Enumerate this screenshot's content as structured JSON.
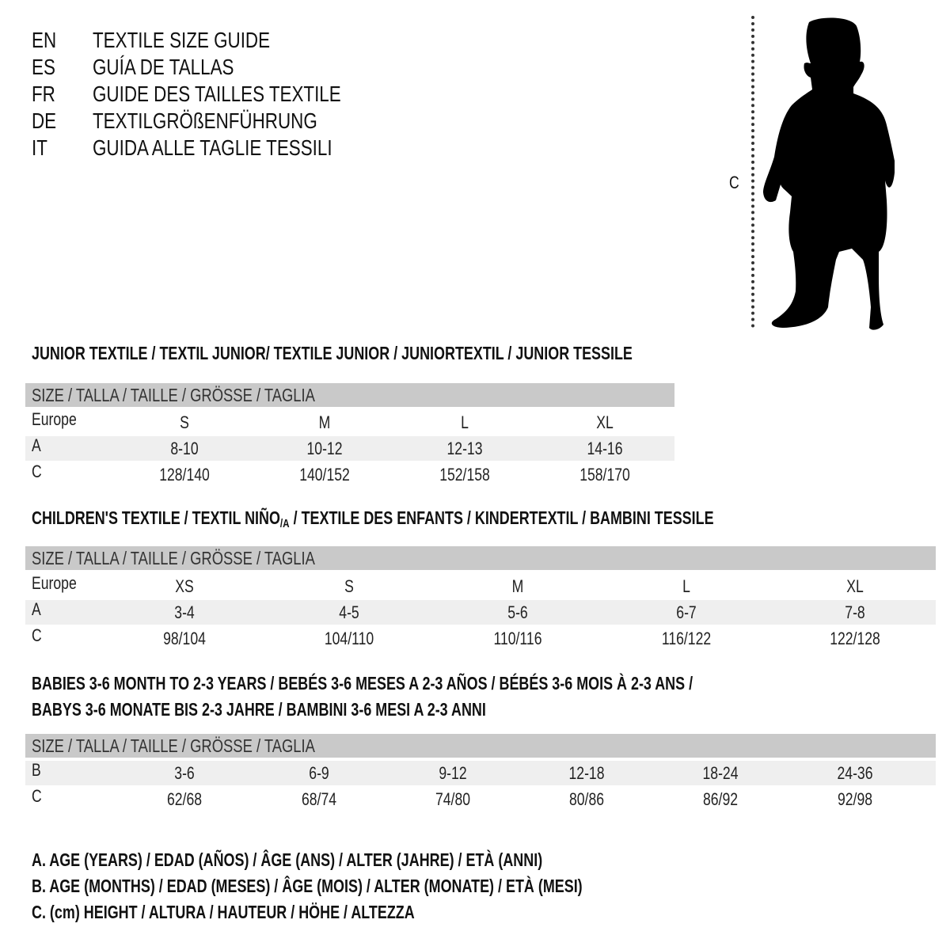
{
  "languages": [
    {
      "code": "EN",
      "title": "TEXTILE SIZE GUIDE"
    },
    {
      "code": "ES",
      "title": "GUÍA DE TALLAS"
    },
    {
      "code": "FR",
      "title": "GUIDE DES TAILLES TEXTILE"
    },
    {
      "code": "DE",
      "title": "TEXTILGRÖßENFÜHRUNG"
    },
    {
      "code": "IT",
      "title": "GUIDA ALLE TAGLIE TESSILI"
    }
  ],
  "figure": {
    "measure_label": "C",
    "icon": "child-silhouette-icon"
  },
  "colors": {
    "header_band": "#c9c9c9",
    "alt_row": "#efefef",
    "text": "#111111"
  },
  "tables": [
    {
      "title": "JUNIOR TEXTILE / TEXTIL JUNIOR/ TEXTILE JUNIOR / JUNIORTEXTIL / JUNIOR TESSILE",
      "header": "SIZE / TALLA / TAILLE / GRÖSSE / TAGLIA",
      "rows": [
        {
          "label": "Europe",
          "values": [
            "S",
            "M",
            "L",
            "XL"
          ]
        },
        {
          "label": "A",
          "values": [
            "8-10",
            "10-12",
            "12-13",
            "14-16"
          ]
        },
        {
          "label": "C",
          "values": [
            "128/140",
            "140/152",
            "152/158",
            "158/170"
          ]
        }
      ]
    },
    {
      "title_parts": [
        "CHILDREN'S TEXTILE / TEXTIL NIÑO",
        "/A",
        " / TEXTILE DES ENFANTS / KINDERTEXTIL / BAMBINI TESSILE"
      ],
      "header": "SIZE / TALLA / TAILLE / GRÖSSE / TAGLIA",
      "rows": [
        {
          "label": "Europe",
          "values": [
            "XS",
            "S",
            "M",
            "L",
            "XL"
          ]
        },
        {
          "label": "A",
          "values": [
            "3-4",
            "4-5",
            "5-6",
            "6-7",
            "7-8"
          ]
        },
        {
          "label": "C",
          "values": [
            "98/104",
            "104/110",
            "110/116",
            "116/122",
            "122/128"
          ]
        }
      ]
    },
    {
      "title_lines": [
        "BABIES 3-6 MONTH TO 2-3 YEARS / BEBÉS 3-6 MESES A 2-3 AÑOS / BÉBÉS 3-6 MOIS À 2-3 ANS /",
        "BABYS 3-6 MONATE BIS 2-3 JAHRE / BAMBINI 3-6 MESI A 2-3 ANNI"
      ],
      "header": "SIZE / TALLA / TAILLE / GRÖSSE / TAGLIA",
      "rows": [
        {
          "label": "B",
          "values": [
            "3-6",
            "6-9",
            "9-12",
            "12-18",
            "18-24",
            "24-36"
          ]
        },
        {
          "label": "C",
          "values": [
            "62/68",
            "68/74",
            "74/80",
            "80/86",
            "86/92",
            "92/98"
          ]
        }
      ]
    }
  ],
  "legend": [
    "A. AGE (YEARS) / EDAD (AÑOS) / ÂGE (ANS) / ALTER (JAHRE) / ETÀ (ANNI)",
    "B. AGE (MONTHS) / EDAD (MESES) / ÂGE (MOIS) / ALTER (MONATE) / ETÀ (MESI)",
    "C. (cm) HEIGHT / ALTURA / HAUTEUR / HÖHE / ALTEZZA"
  ]
}
